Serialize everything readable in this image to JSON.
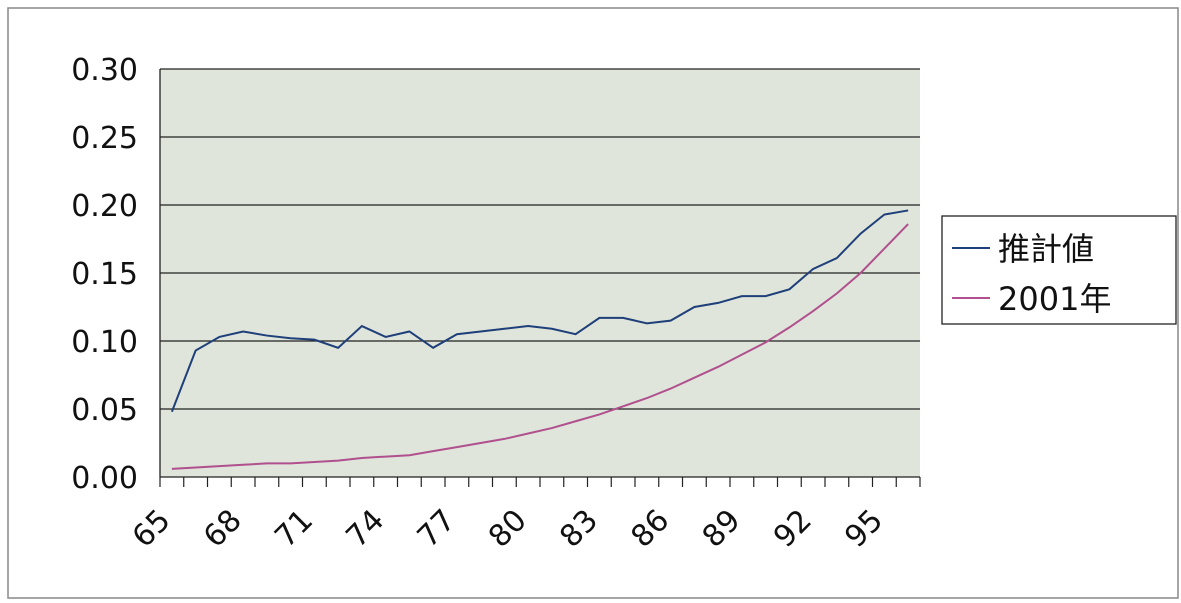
{
  "chart_data": {
    "type": "line",
    "categories": [
      "65",
      null,
      null,
      "68",
      null,
      null,
      "71",
      null,
      null,
      "74",
      null,
      null,
      "77",
      null,
      null,
      "80",
      null,
      null,
      "83",
      null,
      null,
      "86",
      null,
      null,
      "89",
      null,
      null,
      "92",
      null,
      null,
      "95",
      null
    ],
    "series": [
      {
        "name": "推計値",
        "color": "#1f3f7a",
        "values": [
          0.048,
          0.093,
          0.103,
          0.107,
          0.104,
          0.102,
          0.101,
          0.095,
          0.111,
          0.103,
          0.107,
          0.095,
          0.105,
          0.107,
          0.109,
          0.111,
          0.109,
          0.105,
          0.117,
          0.117,
          0.113,
          0.115,
          0.125,
          0.128,
          0.133,
          0.133,
          0.138,
          0.153,
          0.161,
          0.179,
          0.193,
          0.196
        ]
      },
      {
        "name": "2001年",
        "color": "#b0508e",
        "values": [
          0.006,
          0.007,
          0.008,
          0.009,
          0.01,
          0.01,
          0.011,
          0.012,
          0.014,
          0.015,
          0.016,
          0.019,
          0.022,
          0.025,
          0.028,
          0.032,
          0.036,
          0.041,
          0.046,
          0.052,
          0.058,
          0.065,
          0.073,
          0.081,
          0.09,
          0.099,
          0.11,
          0.122,
          0.135,
          0.15,
          0.168,
          0.186
        ]
      }
    ],
    "ylim": [
      0,
      0.3
    ],
    "yticks": [
      {
        "value": 0,
        "label": "0.00"
      },
      {
        "value": 0.05,
        "label": "0.05"
      },
      {
        "value": 0.1,
        "label": "0.10"
      },
      {
        "value": 0.15,
        "label": "0.15"
      },
      {
        "value": 0.2,
        "label": "0.20"
      },
      {
        "value": 0.25,
        "label": "0.25"
      },
      {
        "value": 0.3,
        "label": "0.30"
      }
    ],
    "grid": true,
    "legend": "right"
  }
}
